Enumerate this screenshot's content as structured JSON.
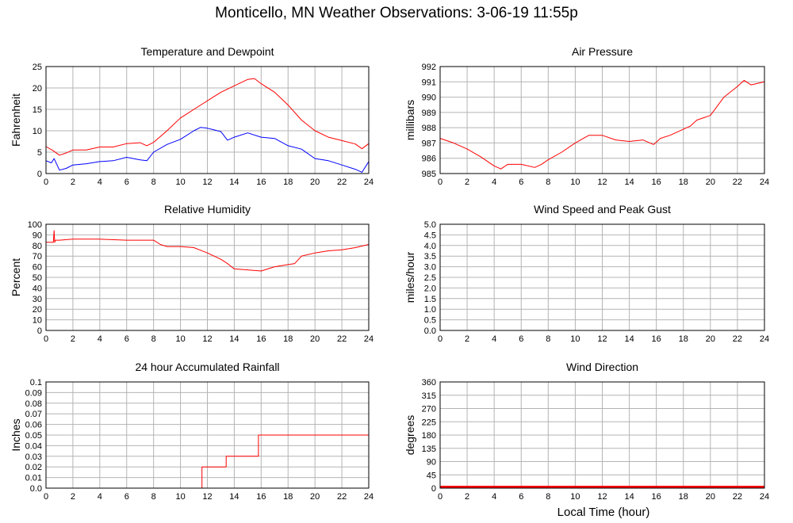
{
  "page_title": "Monticello, MN Weather Observations: 3-06-19 11:55p",
  "x_axis_label": "Local Time (hour)",
  "colors": {
    "red": "#ff0000",
    "blue": "#0000ff",
    "grid": "#b4b4b4"
  },
  "chart_data": [
    {
      "id": "temp",
      "type": "line",
      "title": "Temperature and Dewpoint",
      "ylabel": "Fahrenheit",
      "xlim": [
        0,
        24
      ],
      "ylim": [
        0,
        25
      ],
      "yticks": [
        0,
        5,
        10,
        15,
        20,
        25
      ],
      "xticks": [
        0,
        2,
        4,
        6,
        8,
        10,
        12,
        14,
        16,
        18,
        20,
        22,
        24
      ],
      "grid": true,
      "series": [
        {
          "color": "#ff0000",
          "step": false,
          "x": [
            0,
            0.5,
            1,
            1.5,
            2,
            3,
            4,
            5,
            6,
            7,
            7.5,
            8,
            9,
            10,
            10.5,
            11,
            12,
            12.5,
            13,
            14,
            15,
            15.5,
            16,
            17,
            18,
            19,
            20,
            21,
            22,
            23,
            23.5,
            24
          ],
          "y": [
            6.3,
            5.4,
            4.3,
            4.8,
            5.5,
            5.5,
            6.2,
            6.2,
            7.0,
            7.2,
            6.5,
            7.3,
            10,
            13,
            14,
            15,
            17,
            18,
            19,
            20.5,
            22,
            22.2,
            21,
            19,
            16,
            12.5,
            10,
            8.5,
            7.7,
            6.9,
            5.8,
            7.0
          ]
        },
        {
          "color": "#0000ff",
          "step": false,
          "x": [
            0,
            0.4,
            0.6,
            1,
            1.5,
            2,
            3,
            4,
            5,
            6,
            7,
            7.5,
            8,
            9,
            10,
            11,
            11.5,
            12,
            12.5,
            13,
            13.5,
            14,
            15,
            16,
            17,
            18,
            19,
            20,
            21,
            22,
            23,
            23.5,
            24
          ],
          "y": [
            3.0,
            2.5,
            3.5,
            0.8,
            1.2,
            2.0,
            2.3,
            2.8,
            3.0,
            3.8,
            3.2,
            3.0,
            5.0,
            6.8,
            8.0,
            10,
            10.8,
            10.6,
            10.2,
            9.8,
            7.8,
            8.5,
            9.5,
            8.5,
            8.2,
            6.5,
            5.7,
            3.5,
            3.0,
            2.0,
            1.0,
            0.3,
            2.8
          ]
        }
      ]
    },
    {
      "id": "pressure",
      "type": "line",
      "title": "Air Pressure",
      "ylabel": "millibars",
      "xlim": [
        0,
        24
      ],
      "ylim": [
        985,
        992
      ],
      "yticks": [
        985,
        986,
        987,
        988,
        989,
        990,
        991,
        992
      ],
      "xticks": [
        0,
        2,
        4,
        6,
        8,
        10,
        12,
        14,
        16,
        18,
        20,
        22,
        24
      ],
      "grid": true,
      "series": [
        {
          "color": "#ff0000",
          "step": false,
          "x": [
            0,
            1,
            2,
            3,
            4,
            4.5,
            5,
            6,
            7,
            7.5,
            8,
            9,
            10,
            11,
            12,
            13,
            14,
            15,
            15.8,
            16.3,
            17,
            18,
            18.5,
            19,
            20,
            21,
            22,
            22.5,
            23,
            24
          ],
          "y": [
            987.3,
            987.0,
            986.6,
            986.1,
            985.5,
            985.3,
            985.6,
            985.6,
            985.4,
            985.6,
            985.9,
            986.4,
            987.0,
            987.5,
            987.5,
            987.2,
            987.1,
            987.2,
            986.9,
            987.3,
            987.5,
            987.9,
            988.1,
            988.5,
            988.8,
            990.0,
            990.7,
            991.1,
            990.8,
            991.0
          ]
        }
      ]
    },
    {
      "id": "humidity",
      "type": "line",
      "title": "Relative Humidity",
      "ylabel": "Percent",
      "xlim": [
        0,
        24
      ],
      "ylim": [
        0,
        100
      ],
      "yticks": [
        0,
        10,
        20,
        30,
        40,
        50,
        60,
        70,
        80,
        90,
        100
      ],
      "xticks": [
        0,
        2,
        4,
        6,
        8,
        10,
        12,
        14,
        16,
        18,
        20,
        22,
        24
      ],
      "grid": true,
      "series": [
        {
          "color": "#ff0000",
          "step": false,
          "x": [
            0,
            0.55,
            0.6,
            0.65,
            0.7,
            1,
            2,
            4,
            6,
            8,
            8.5,
            9,
            10,
            11,
            12,
            12.5,
            13,
            13.5,
            14,
            15,
            16,
            17,
            18,
            18.5,
            19,
            20,
            21,
            22,
            23,
            24
          ],
          "y": [
            83,
            83,
            94,
            83,
            85,
            85,
            86,
            86,
            85,
            85,
            81,
            79,
            79,
            78,
            73,
            70,
            67,
            63,
            58,
            57,
            56,
            60,
            62,
            63,
            70,
            73,
            75,
            76,
            78,
            81
          ]
        }
      ]
    },
    {
      "id": "wind-speed",
      "type": "line",
      "title": "Wind Speed and Peak Gust",
      "ylabel": "miles/hour",
      "xlim": [
        0,
        24
      ],
      "ylim": [
        0,
        5
      ],
      "yticks": [
        0.0,
        0.5,
        1.0,
        1.5,
        2.0,
        2.5,
        3.0,
        3.5,
        4.0,
        4.5,
        5.0
      ],
      "ytick_labels": [
        "0.0",
        "0.5",
        "1.0",
        "1.5",
        "2.0",
        "2.5",
        "3.0",
        "3.5",
        "4.0",
        "4.5",
        "5.0"
      ],
      "xticks": [
        0,
        2,
        4,
        6,
        8,
        10,
        12,
        14,
        16,
        18,
        20,
        22,
        24
      ],
      "grid": true,
      "series": [
        {
          "color": "#0000ff",
          "step": false,
          "x": [
            0,
            24
          ],
          "y": [
            0,
            0
          ]
        }
      ]
    },
    {
      "id": "rainfall",
      "type": "line",
      "title": "24 hour Accumulated Rainfall",
      "ylabel": "Inches",
      "xlim": [
        0,
        24
      ],
      "ylim": [
        0,
        0.1
      ],
      "yticks": [
        0,
        0.01,
        0.02,
        0.03,
        0.04,
        0.05,
        0.06,
        0.07,
        0.08,
        0.09,
        0.1
      ],
      "ytick_labels": [
        "0.0",
        "0.01",
        "0.02",
        "0.03",
        "0.04",
        "0.05",
        "0.06",
        "0.07",
        "0.08",
        "0.09",
        "0.1"
      ],
      "xticks": [
        0,
        2,
        4,
        6,
        8,
        10,
        12,
        14,
        16,
        18,
        20,
        22,
        24
      ],
      "grid": true,
      "series": [
        {
          "color": "#ff0000",
          "step": true,
          "x": [
            0,
            11.6,
            13.4,
            15.8,
            24
          ],
          "y": [
            0,
            0.02,
            0.03,
            0.05,
            0.05
          ]
        }
      ]
    },
    {
      "id": "wind-direction",
      "type": "line",
      "title": "Wind Direction",
      "ylabel": "degrees",
      "xlim": [
        0,
        24
      ],
      "ylim": [
        0,
        360
      ],
      "yticks": [
        0,
        45,
        90,
        135,
        180,
        225,
        270,
        315,
        360
      ],
      "xticks": [
        0,
        2,
        4,
        6,
        8,
        10,
        12,
        14,
        16,
        18,
        20,
        22,
        24
      ],
      "grid": true,
      "series": [
        {
          "color": "#ff0000",
          "step": false,
          "thick": true,
          "x": [
            0,
            24
          ],
          "y": [
            0,
            0
          ]
        }
      ]
    }
  ]
}
